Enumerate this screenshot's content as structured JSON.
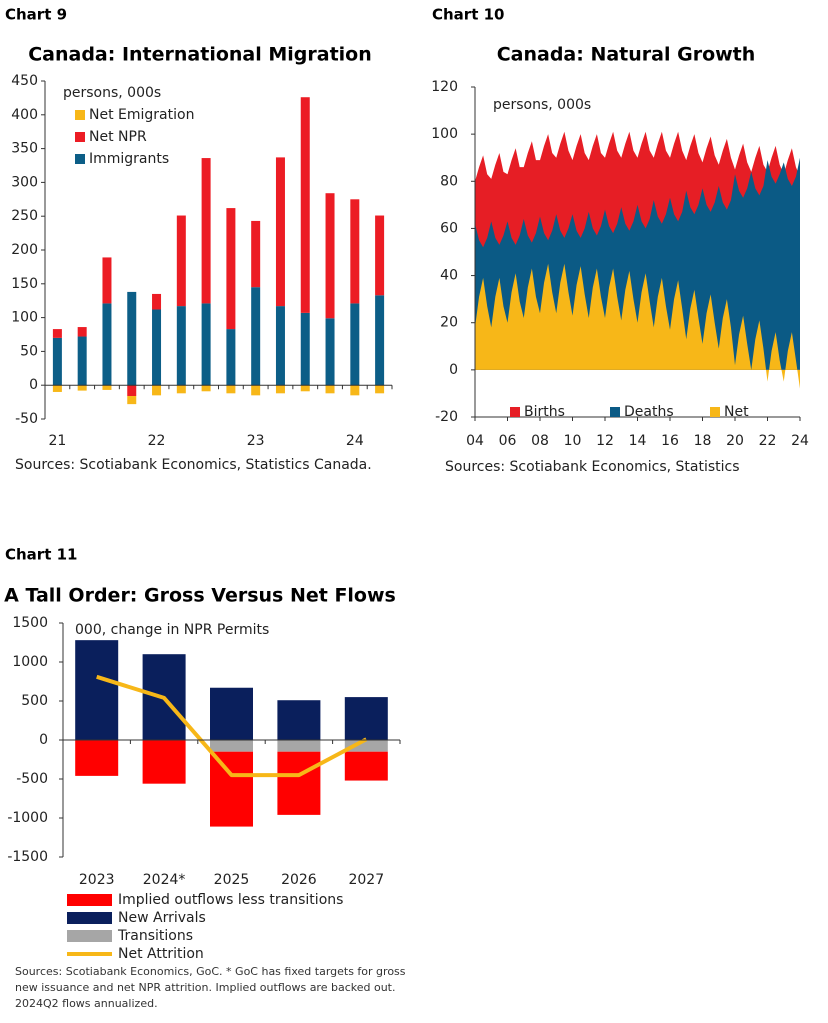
{
  "chart_data": [
    {
      "type": "bar",
      "label": "Chart 9",
      "title": "Canada: International Migration",
      "annotation": "persons, 000s",
      "source": "Sources: Scotiabank Economics, Statistics Canada.",
      "categories": [
        "21",
        null,
        null,
        null,
        "22",
        null,
        null,
        null,
        "23",
        null,
        null,
        null,
        "24",
        null
      ],
      "series": [
        {
          "name": "Net Emigration",
          "color": "#f7b718",
          "values": [
            -10,
            -8,
            -7,
            -12,
            -15,
            -12,
            -9,
            -12,
            -15,
            -12,
            -9,
            -12,
            -15,
            -12
          ]
        },
        {
          "name": "Net NPR",
          "color": "#ec1c24",
          "values": [
            13,
            14,
            68,
            -16,
            23,
            134,
            215,
            179,
            98,
            220,
            319,
            185,
            154,
            118
          ]
        },
        {
          "name": "Immigrants",
          "color": "#0c5e87",
          "values": [
            70,
            72,
            121,
            138,
            112,
            117,
            121,
            83,
            145,
            117,
            107,
            99,
            121,
            133
          ]
        }
      ],
      "ylim": [
        -50,
        450
      ],
      "yticks": [
        -50,
        0,
        50,
        100,
        150,
        200,
        250,
        300,
        350,
        400,
        450
      ]
    },
    {
      "type": "area",
      "label": "Chart 10",
      "title": "Canada: Natural Growth",
      "annotation": "persons, 000s",
      "source": "Sources: Scotiabank Economics, Statistics",
      "x": [
        2004,
        2004.25,
        2004.5,
        2004.75,
        2005,
        2005.25,
        2005.5,
        2005.75,
        2006,
        2006.25,
        2006.5,
        2006.75,
        2007,
        2007.25,
        2007.5,
        2007.75,
        2008,
        2008.25,
        2008.5,
        2008.75,
        2009,
        2009.25,
        2009.5,
        2009.75,
        2010,
        2010.25,
        2010.5,
        2010.75,
        2011,
        2011.25,
        2011.5,
        2011.75,
        2012,
        2012.25,
        2012.5,
        2012.75,
        2013,
        2013.25,
        2013.5,
        2013.75,
        2014,
        2014.25,
        2014.5,
        2014.75,
        2015,
        2015.25,
        2015.5,
        2015.75,
        2016,
        2016.25,
        2016.5,
        2016.75,
        2017,
        2017.25,
        2017.5,
        2017.75,
        2018,
        2018.25,
        2018.5,
        2018.75,
        2019,
        2019.25,
        2019.5,
        2019.75,
        2020,
        2020.25,
        2020.5,
        2020.75,
        2021,
        2021.25,
        2021.5,
        2021.75,
        2022,
        2022.25,
        2022.5,
        2022.75,
        2023,
        2023.25,
        2023.5,
        2023.75,
        2024
      ],
      "series": [
        {
          "name": "Births",
          "color": "#e61e25",
          "values": [
            80,
            86,
            91,
            83,
            81,
            87,
            92,
            84,
            83,
            89,
            94,
            86,
            86,
            92,
            97,
            89,
            89,
            95,
            100,
            92,
            90,
            96,
            101,
            93,
            89,
            95,
            100,
            92,
            89,
            95,
            100,
            92,
            90,
            96,
            101,
            93,
            90,
            96,
            101,
            93,
            90,
            96,
            101,
            93,
            90,
            96,
            101,
            93,
            90,
            96,
            101,
            93,
            89,
            95,
            100,
            92,
            88,
            94,
            99,
            91,
            87,
            93,
            98,
            90,
            85,
            91,
            96,
            88,
            84,
            90,
            95,
            87,
            84,
            90,
            95,
            87,
            83,
            89,
            94,
            86,
            82
          ]
        },
        {
          "name": "Deaths",
          "color": "#0b5a85",
          "values": [
            62,
            55,
            52,
            56,
            63,
            56,
            53,
            57,
            63,
            56,
            53,
            57,
            64,
            57,
            54,
            58,
            65,
            58,
            55,
            59,
            66,
            59,
            56,
            60,
            66,
            59,
            56,
            60,
            67,
            60,
            57,
            61,
            68,
            61,
            58,
            62,
            69,
            62,
            59,
            63,
            70,
            63,
            60,
            64,
            72,
            65,
            62,
            66,
            73,
            66,
            63,
            67,
            76,
            69,
            66,
            70,
            77,
            70,
            67,
            71,
            78,
            71,
            68,
            72,
            83,
            76,
            73,
            77,
            84,
            77,
            74,
            78,
            89,
            82,
            79,
            83,
            88,
            81,
            78,
            82,
            90
          ]
        },
        {
          "name": "Net",
          "color": "#f7b718",
          "values": [
            18,
            31,
            39,
            27,
            18,
            31,
            39,
            27,
            20,
            33,
            41,
            29,
            22,
            35,
            43,
            31,
            24,
            37,
            45,
            33,
            24,
            37,
            45,
            33,
            23,
            36,
            44,
            32,
            22,
            35,
            43,
            31,
            22,
            35,
            43,
            31,
            21,
            34,
            42,
            30,
            20,
            33,
            41,
            29,
            18,
            31,
            39,
            27,
            17,
            30,
            38,
            26,
            13,
            26,
            34,
            22,
            11,
            24,
            32,
            20,
            9,
            22,
            30,
            18,
            2,
            15,
            23,
            11,
            0,
            13,
            21,
            9,
            -5,
            8,
            16,
            4,
            -5,
            8,
            16,
            4,
            -8
          ]
        }
      ],
      "xlim": [
        2004,
        2024
      ],
      "xticks": [
        {
          "value": 2004,
          "label": "04"
        },
        {
          "value": 2006,
          "label": "06"
        },
        {
          "value": 2008,
          "label": "08"
        },
        {
          "value": 2010,
          "label": "10"
        },
        {
          "value": 2012,
          "label": "12"
        },
        {
          "value": 2014,
          "label": "14"
        },
        {
          "value": 2016,
          "label": "16"
        },
        {
          "value": 2018,
          "label": "18"
        },
        {
          "value": 2020,
          "label": "20"
        },
        {
          "value": 2022,
          "label": "22"
        },
        {
          "value": 2024,
          "label": "24"
        }
      ],
      "ylim": [
        -20,
        120
      ],
      "yticks": [
        -20,
        0,
        20,
        40,
        60,
        80,
        100,
        120
      ]
    },
    {
      "type": "bar",
      "label": "Chart 11",
      "title": "A Tall Order: Gross Versus Net Flows",
      "annotation": "000, change in NPR Permits",
      "source": "Sources: Scotiabank Economics, GoC. * GoC has fixed targets for gross new issuance and net NPR attrition. Implied outflows are backed out. 2024Q2 flows annualized.",
      "categories": [
        "2023",
        "2024*",
        "2025",
        "2026",
        "2027"
      ],
      "series": [
        {
          "name": "Implied outflows less transitions",
          "color": "#ff0000",
          "values": [
            -460,
            -560,
            -960,
            -810,
            -370
          ]
        },
        {
          "name": "New Arrivals",
          "color": "#0a1f5c",
          "values": [
            1280,
            1100,
            670,
            510,
            550
          ]
        },
        {
          "name": "Transitions",
          "color": "#a6a6a6",
          "values": [
            0,
            0,
            -150,
            -150,
            -150
          ]
        },
        {
          "name": "Net Attrition",
          "color": "#f7b718",
          "type": "line",
          "values": [
            810,
            540,
            -450,
            -450,
            10
          ]
        }
      ],
      "ylim": [
        -1500,
        1500
      ],
      "yticks": [
        -1500,
        -1000,
        -500,
        0,
        500,
        1000,
        1500
      ]
    }
  ]
}
